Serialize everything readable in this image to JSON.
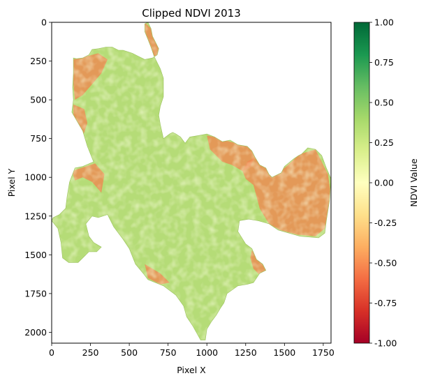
{
  "chart_data": {
    "type": "heatmap",
    "title": "Clipped NDVI 2013",
    "xlabel": "Pixel X",
    "ylabel": "Pixel Y",
    "xlim": [
      0,
      1800
    ],
    "ylim": [
      2070,
      0
    ],
    "x_ticks": [
      0,
      250,
      500,
      750,
      1000,
      1250,
      1500,
      1750
    ],
    "y_ticks": [
      0,
      250,
      500,
      750,
      1000,
      1250,
      1500,
      1750,
      2000
    ],
    "colorbar": {
      "label": "NDVI Value",
      "range": [
        -1.0,
        1.0
      ],
      "ticks": [
        "-1.00",
        "-0.75",
        "-0.50",
        "-0.25",
        "0.00",
        "0.25",
        "0.50",
        "0.75",
        "1.00"
      ],
      "colormap": "RdYlGn",
      "stops": [
        "#a50026",
        "#d73027",
        "#f46d43",
        "#fdae61",
        "#fee08b",
        "#ffffbf",
        "#d9ef8b",
        "#a6d96a",
        "#66bd63",
        "#1a9850",
        "#006837"
      ]
    },
    "region": {
      "dominant_color": "#b5dc77",
      "light_color": "#e6f3a3",
      "low_ndvi_color": "#f0864f",
      "outline": [
        [
          600,
          10
        ],
        [
          620,
          0
        ],
        [
          640,
          40
        ],
        [
          650,
          90
        ],
        [
          670,
          130
        ],
        [
          690,
          170
        ],
        [
          680,
          210
        ],
        [
          650,
          230
        ],
        [
          600,
          240
        ],
        [
          560,
          220
        ],
        [
          520,
          200
        ],
        [
          490,
          190
        ],
        [
          460,
          180
        ],
        [
          430,
          180
        ],
        [
          390,
          160
        ],
        [
          350,
          160
        ],
        [
          300,
          170
        ],
        [
          260,
          175
        ],
        [
          240,
          210
        ],
        [
          200,
          230
        ],
        [
          160,
          235
        ],
        [
          140,
          230
        ],
        [
          140,
          330
        ],
        [
          135,
          420
        ],
        [
          140,
          500
        ],
        [
          130,
          580
        ],
        [
          170,
          650
        ],
        [
          200,
          700
        ],
        [
          230,
          800
        ],
        [
          270,
          900
        ],
        [
          200,
          930
        ],
        [
          150,
          940
        ],
        [
          115,
          1030
        ],
        [
          100,
          1120
        ],
        [
          90,
          1200
        ],
        [
          50,
          1240
        ],
        [
          10,
          1260
        ],
        [
          0,
          1280
        ],
        [
          40,
          1330
        ],
        [
          60,
          1420
        ],
        [
          70,
          1520
        ],
        [
          110,
          1550
        ],
        [
          170,
          1550
        ],
        [
          210,
          1510
        ],
        [
          240,
          1480
        ],
        [
          290,
          1480
        ],
        [
          320,
          1450
        ],
        [
          270,
          1420
        ],
        [
          240,
          1380
        ],
        [
          220,
          1300
        ],
        [
          260,
          1250
        ],
        [
          300,
          1260
        ],
        [
          360,
          1240
        ],
        [
          400,
          1320
        ],
        [
          460,
          1400
        ],
        [
          500,
          1460
        ],
        [
          540,
          1560
        ],
        [
          590,
          1620
        ],
        [
          620,
          1660
        ],
        [
          720,
          1700
        ],
        [
          800,
          1760
        ],
        [
          850,
          1830
        ],
        [
          870,
          1900
        ],
        [
          910,
          1960
        ],
        [
          960,
          2050
        ],
        [
          990,
          2050
        ],
        [
          1000,
          1980
        ],
        [
          1030,
          1930
        ],
        [
          1060,
          1890
        ],
        [
          1090,
          1840
        ],
        [
          1110,
          1810
        ],
        [
          1130,
          1750
        ],
        [
          1200,
          1700
        ],
        [
          1260,
          1690
        ],
        [
          1300,
          1680
        ],
        [
          1340,
          1620
        ],
        [
          1380,
          1600
        ],
        [
          1360,
          1560
        ],
        [
          1320,
          1530
        ],
        [
          1290,
          1460
        ],
        [
          1250,
          1430
        ],
        [
          1200,
          1350
        ],
        [
          1210,
          1280
        ],
        [
          1270,
          1270
        ],
        [
          1330,
          1280
        ],
        [
          1400,
          1300
        ],
        [
          1460,
          1340
        ],
        [
          1600,
          1380
        ],
        [
          1720,
          1390
        ],
        [
          1760,
          1360
        ],
        [
          1770,
          1280
        ],
        [
          1790,
          1150
        ],
        [
          1800,
          1010
        ],
        [
          1770,
          940
        ],
        [
          1740,
          860
        ],
        [
          1700,
          820
        ],
        [
          1650,
          810
        ],
        [
          1610,
          850
        ],
        [
          1590,
          860
        ],
        [
          1560,
          880
        ],
        [
          1500,
          930
        ],
        [
          1480,
          970
        ],
        [
          1420,
          1000
        ],
        [
          1400,
          980
        ],
        [
          1380,
          940
        ],
        [
          1340,
          920
        ],
        [
          1310,
          870
        ],
        [
          1290,
          830
        ],
        [
          1260,
          800
        ],
        [
          1200,
          790
        ],
        [
          1150,
          760
        ],
        [
          1100,
          770
        ],
        [
          1050,
          740
        ],
        [
          1000,
          720
        ],
        [
          950,
          730
        ],
        [
          890,
          740
        ],
        [
          860,
          780
        ],
        [
          830,
          740
        ],
        [
          800,
          720
        ],
        [
          780,
          710
        ],
        [
          760,
          720
        ],
        [
          720,
          750
        ],
        [
          700,
          660
        ],
        [
          690,
          600
        ],
        [
          700,
          540
        ],
        [
          720,
          480
        ],
        [
          720,
          360
        ],
        [
          700,
          300
        ],
        [
          680,
          260
        ],
        [
          660,
          220
        ],
        [
          640,
          160
        ],
        [
          620,
          110
        ],
        [
          600,
          60
        ]
      ],
      "low_ndvi_patches": [
        [
          [
            140,
            240
          ],
          [
            300,
            200
          ],
          [
            360,
            240
          ],
          [
            320,
            330
          ],
          [
            260,
            400
          ],
          [
            200,
            470
          ],
          [
            150,
            500
          ],
          [
            140,
            400
          ]
        ],
        [
          [
            140,
            530
          ],
          [
            210,
            560
          ],
          [
            230,
            650
          ],
          [
            200,
            740
          ],
          [
            230,
            800
          ],
          [
            180,
            720
          ],
          [
            140,
            620
          ]
        ],
        [
          [
            600,
            0
          ],
          [
            640,
            40
          ],
          [
            660,
            110
          ],
          [
            690,
            170
          ],
          [
            680,
            210
          ],
          [
            640,
            230
          ],
          [
            600,
            200
          ],
          [
            580,
            120
          ],
          [
            590,
            50
          ]
        ],
        [
          [
            130,
            960
          ],
          [
            280,
            910
          ],
          [
            340,
            980
          ],
          [
            320,
            1100
          ],
          [
            260,
            1030
          ],
          [
            200,
            1000
          ],
          [
            150,
            1020
          ]
        ],
        [
          [
            1310,
            870
          ],
          [
            1380,
            940
          ],
          [
            1500,
            940
          ],
          [
            1600,
            850
          ],
          [
            1700,
            820
          ],
          [
            1780,
            980
          ],
          [
            1800,
            1120
          ],
          [
            1760,
            1330
          ],
          [
            1700,
            1380
          ],
          [
            1580,
            1370
          ],
          [
            1470,
            1340
          ],
          [
            1400,
            1300
          ],
          [
            1340,
            1200
          ],
          [
            1300,
            1050
          ],
          [
            1250,
            1010
          ],
          [
            1230,
            960
          ],
          [
            1260,
            900
          ]
        ],
        [
          [
            1000,
            730
          ],
          [
            1050,
            740
          ],
          [
            1150,
            770
          ],
          [
            1260,
            800
          ],
          [
            1290,
            830
          ],
          [
            1310,
            870
          ],
          [
            1280,
            930
          ],
          [
            1230,
            960
          ],
          [
            1160,
            920
          ],
          [
            1100,
            900
          ],
          [
            1020,
            820
          ]
        ],
        [
          [
            1290,
            1470
          ],
          [
            1340,
            1530
          ],
          [
            1380,
            1600
          ],
          [
            1340,
            1630
          ],
          [
            1300,
            1590
          ],
          [
            1280,
            1520
          ]
        ],
        [
          [
            600,
            1560
          ],
          [
            700,
            1620
          ],
          [
            760,
            1680
          ],
          [
            700,
            1690
          ],
          [
            620,
            1650
          ]
        ]
      ]
    }
  }
}
